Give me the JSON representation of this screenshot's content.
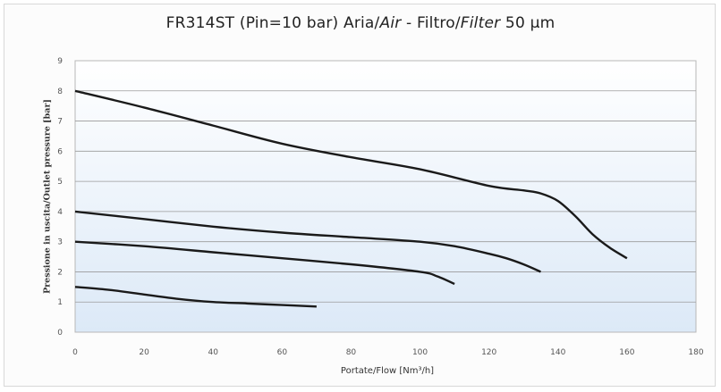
{
  "chart_data": {
    "type": "line",
    "title": "FR314ST (Pin=10 bar) Aria/Air - Filtro/Filter 50 µm",
    "title_parts": {
      "plain1": "FR314ST (Pin=10 bar) Aria/",
      "italic1": "Air",
      "plain2": " - Filtro/",
      "italic2": "Filter",
      "plain3": " 50 µm"
    },
    "xlabel": "Portate/Flow [Nm³/h]",
    "ylabel": "Pressione in uscita/Outlet pressure [bar]",
    "xlim": [
      0,
      180
    ],
    "ylim": [
      0,
      9
    ],
    "xticks": [
      "0",
      "20",
      "40",
      "60",
      "80",
      "100",
      "120",
      "140",
      "160",
      "180"
    ],
    "yticks": [
      "0",
      "1",
      "2",
      "3",
      "4",
      "5",
      "6",
      "7",
      "8",
      "9"
    ],
    "grid": true,
    "background_colors": [
      "#ffffff",
      "#dce9f7"
    ],
    "line_color": "#1a1a1a",
    "series": [
      {
        "x": [
          0,
          20,
          40,
          60,
          80,
          100,
          120,
          130,
          135,
          140,
          145,
          150,
          155,
          160
        ],
        "y": [
          8,
          7.45,
          6.85,
          6.25,
          5.8,
          5.4,
          4.85,
          4.7,
          4.6,
          4.35,
          3.85,
          3.25,
          2.8,
          2.45
        ]
      },
      {
        "x": [
          0,
          20,
          40,
          60,
          80,
          100,
          110,
          120,
          125,
          130,
          135
        ],
        "y": [
          4,
          3.75,
          3.5,
          3.3,
          3.15,
          3,
          2.85,
          2.6,
          2.45,
          2.25,
          2
        ]
      },
      {
        "x": [
          0,
          20,
          40,
          60,
          80,
          100,
          105,
          110
        ],
        "y": [
          3,
          2.85,
          2.65,
          2.45,
          2.25,
          2,
          1.85,
          1.6
        ]
      },
      {
        "x": [
          0,
          10,
          20,
          30,
          40,
          50,
          60,
          70
        ],
        "y": [
          1.5,
          1.4,
          1.25,
          1.1,
          1,
          0.95,
          0.9,
          0.85
        ]
      }
    ]
  }
}
